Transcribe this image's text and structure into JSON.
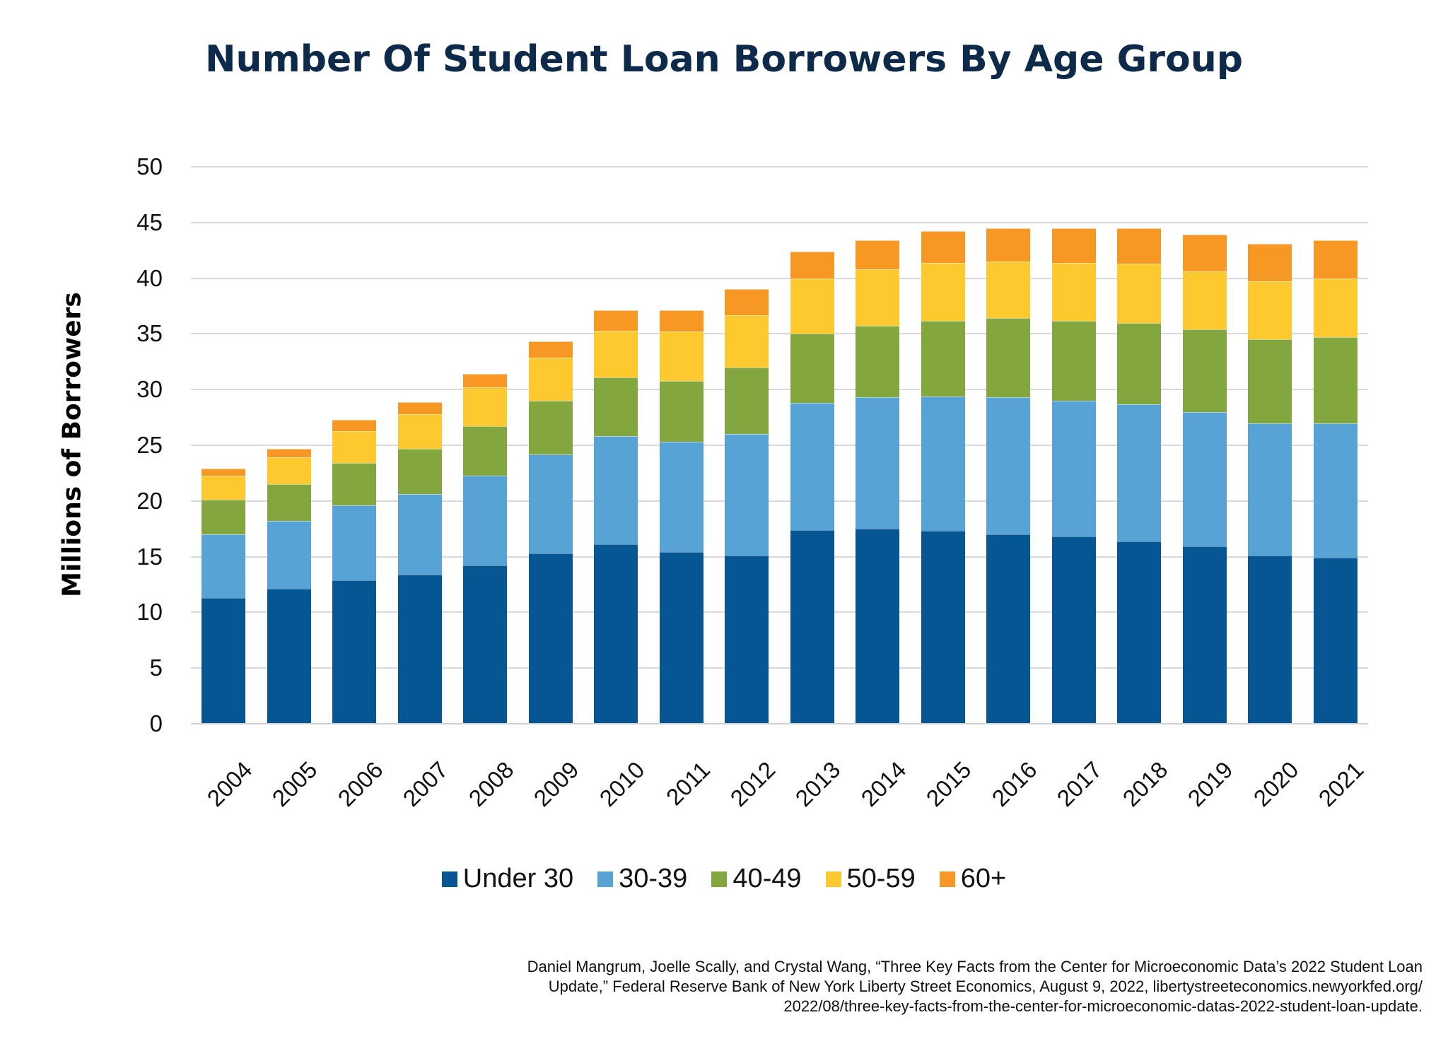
{
  "title": "Number Of Student Loan Borrowers By Age Group",
  "y_axis_label": "Millions of Borrowers",
  "legend": [
    {
      "label": "Under 30",
      "color": "#065694"
    },
    {
      "label": "30-39",
      "color": "#58a3d6"
    },
    {
      "label": "40-49",
      "color": "#84a63f"
    },
    {
      "label": "50-59",
      "color": "#fec92e"
    },
    {
      "label": "60+",
      "color": "#f79824"
    }
  ],
  "source_lines": [
    "Daniel Mangrum, Joelle Scally, and Crystal Wang, “Three Key Facts from the Center for Microeconomic Data’s 2022 Student Loan",
    "Update,” Federal Reserve Bank of New York Liberty Street Economics, August 9, 2022, libertystreeteconomics.newyorkfed.org/",
    "2022/08/three-key-facts-from-the-center-for-microeconomic-datas-2022-student-loan-update."
  ],
  "chart_data": {
    "type": "bar",
    "stacked": true,
    "title": "Number Of Student Loan Borrowers By Age Group",
    "xlabel": "",
    "ylabel": "Millions of Borrowers",
    "ylim": [
      0,
      50
    ],
    "yticks": [
      0,
      5,
      10,
      15,
      20,
      25,
      30,
      35,
      40,
      45,
      50
    ],
    "grid": true,
    "legend_position": "bottom",
    "categories": [
      "2004",
      "2005",
      "2006",
      "2007",
      "2008",
      "2009",
      "2010",
      "2011",
      "2012",
      "2013",
      "2014",
      "2015",
      "2016",
      "2017",
      "2018",
      "2019",
      "2020",
      "2021"
    ],
    "series": [
      {
        "name": "Under 30",
        "color": "#065694",
        "values": [
          11.3,
          12.1,
          12.9,
          13.4,
          14.2,
          15.3,
          16.1,
          15.4,
          15.1,
          17.4,
          17.5,
          17.3,
          17.0,
          16.8,
          16.4,
          15.9,
          15.1,
          14.9
        ]
      },
      {
        "name": "30-39",
        "color": "#58a3d6",
        "values": [
          5.7,
          6.1,
          6.7,
          7.2,
          8.1,
          8.9,
          9.7,
          9.9,
          10.9,
          11.4,
          11.8,
          12.1,
          12.3,
          12.2,
          12.3,
          12.1,
          11.9,
          12.1
        ]
      },
      {
        "name": "40-49",
        "color": "#84a63f",
        "values": [
          3.1,
          3.3,
          3.8,
          4.1,
          4.4,
          4.8,
          5.3,
          5.5,
          6.0,
          6.2,
          6.4,
          6.8,
          7.1,
          7.2,
          7.3,
          7.4,
          7.5,
          7.7
        ]
      },
      {
        "name": "50-59",
        "color": "#fec92e",
        "values": [
          2.2,
          2.4,
          2.9,
          3.1,
          3.5,
          3.9,
          4.2,
          4.4,
          4.7,
          5.0,
          5.1,
          5.2,
          5.1,
          5.2,
          5.3,
          5.2,
          5.2,
          5.3
        ]
      },
      {
        "name": "60+",
        "color": "#f79824",
        "values": [
          0.6,
          0.8,
          1.0,
          1.1,
          1.2,
          1.4,
          1.8,
          1.9,
          2.3,
          2.4,
          2.6,
          2.8,
          3.0,
          3.1,
          3.2,
          3.3,
          3.4,
          3.4
        ]
      }
    ]
  }
}
